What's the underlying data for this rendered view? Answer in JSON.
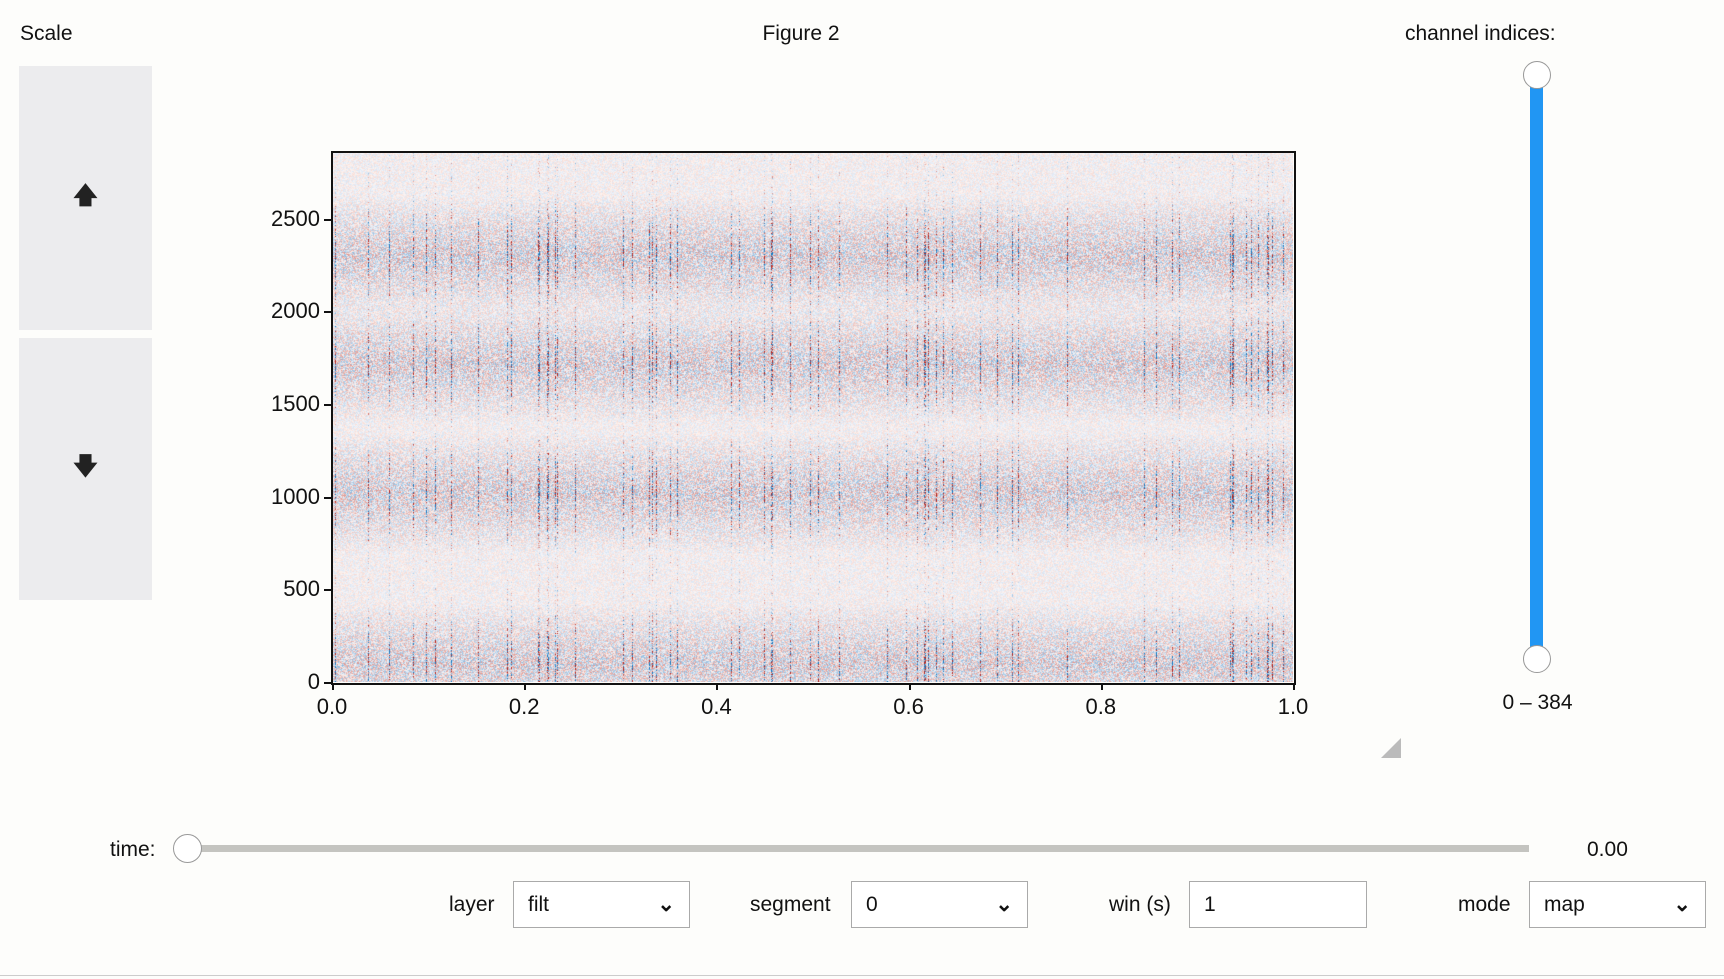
{
  "scale": {
    "label": "Scale",
    "up_icon": "arrow-up",
    "down_icon": "arrow-down"
  },
  "figure": {
    "title": "Figure 2"
  },
  "channel_slider": {
    "label": "channel indices:",
    "range_text": "0 – 384",
    "low": 0,
    "high": 384,
    "color": "#2196f3"
  },
  "chart_data": {
    "type": "heatmap",
    "title": "",
    "xlabel": "",
    "ylabel": "",
    "xlim": [
      0,
      1.0
    ],
    "ylim": [
      0,
      2860
    ],
    "xticks": [
      "0.0",
      "0.2",
      "0.4",
      "0.6",
      "0.8",
      "1.0"
    ],
    "yticks": [
      "0",
      "500",
      "1000",
      "1500",
      "2000",
      "2500"
    ],
    "colormap": "diverging blue-white-red",
    "active_bands_y": [
      2300,
      1720,
      1020,
      100
    ]
  },
  "time": {
    "label": "time:",
    "value_text": "0.00",
    "value": 0
  },
  "controls": {
    "layer": {
      "label": "layer",
      "value": "filt"
    },
    "segment": {
      "label": "segment",
      "value": "0"
    },
    "win": {
      "label": "win (s)",
      "value": "1"
    },
    "mode": {
      "label": "mode",
      "value": "map"
    }
  }
}
